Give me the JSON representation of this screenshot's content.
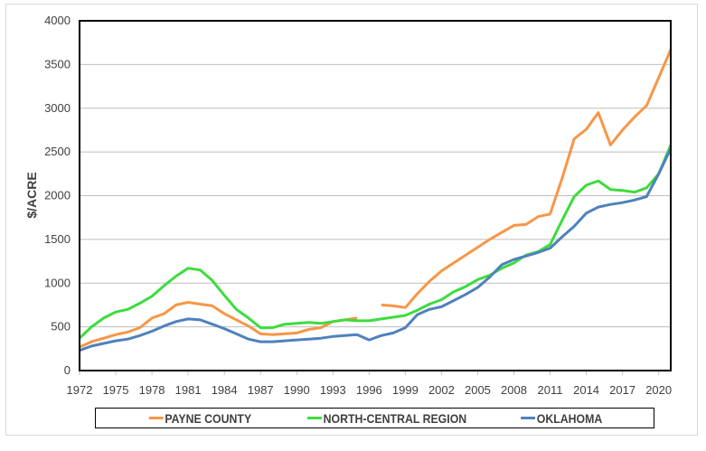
{
  "chart_data": {
    "type": "line",
    "title": "",
    "xlabel": "",
    "ylabel": "$/ACRE",
    "ylim": [
      0,
      4000
    ],
    "yticks": [
      0,
      500,
      1000,
      1500,
      2000,
      2500,
      3000,
      3500,
      4000
    ],
    "xlim": [
      1972,
      2021
    ],
    "xtick_labels": [
      "1972",
      "1975",
      "1978",
      "1981",
      "1984",
      "1987",
      "1990",
      "1993",
      "1996",
      "1999",
      "2002",
      "2005",
      "2008",
      "2011",
      "2014",
      "2017",
      "2020"
    ],
    "grid": true,
    "legend_position": "bottom",
    "x": [
      1972,
      1973,
      1974,
      1975,
      1976,
      1977,
      1978,
      1979,
      1980,
      1981,
      1982,
      1983,
      1984,
      1985,
      1986,
      1987,
      1988,
      1989,
      1990,
      1991,
      1992,
      1993,
      1994,
      1995,
      1996,
      1997,
      1998,
      1999,
      2000,
      2001,
      2002,
      2003,
      2004,
      2005,
      2006,
      2007,
      2008,
      2009,
      2010,
      2011,
      2012,
      2013,
      2014,
      2015,
      2016,
      2017,
      2018,
      2019,
      2020,
      2021
    ],
    "series": [
      {
        "name": "PAYNE COUNTY",
        "color": "#f79646",
        "values": [
          270,
          330,
          370,
          410,
          440,
          490,
          600,
          650,
          750,
          780,
          760,
          740,
          650,
          580,
          510,
          420,
          410,
          420,
          430,
          470,
          490,
          560,
          580,
          600,
          null,
          750,
          740,
          720,
          880,
          1020,
          1140,
          1230,
          1320,
          1410,
          1500,
          1580,
          1660,
          1670,
          1760,
          1790,
          2200,
          2650,
          2760,
          2950,
          2580,
          2750,
          2900,
          3030,
          3350,
          3670
        ]
      },
      {
        "name": "NORTH-CENTRAL REGION",
        "color": "#3ddc3d",
        "values": [
          370,
          500,
          600,
          670,
          700,
          770,
          850,
          970,
          1080,
          1170,
          1150,
          1030,
          860,
          700,
          600,
          490,
          490,
          530,
          540,
          550,
          540,
          560,
          580,
          570,
          570,
          590,
          610,
          630,
          690,
          760,
          810,
          900,
          960,
          1040,
          1090,
          1170,
          1230,
          1320,
          1360,
          1440,
          1720,
          1990,
          2120,
          2170,
          2070,
          2060,
          2040,
          2090,
          2250,
          2580
        ]
      },
      {
        "name": "OKLAHOMA",
        "color": "#4f81bd",
        "values": [
          230,
          280,
          310,
          340,
          360,
          400,
          450,
          510,
          560,
          590,
          580,
          530,
          480,
          420,
          360,
          330,
          330,
          340,
          350,
          360,
          370,
          390,
          400,
          410,
          350,
          400,
          430,
          490,
          640,
          700,
          730,
          800,
          870,
          950,
          1070,
          1210,
          1270,
          1310,
          1350,
          1400,
          1530,
          1650,
          1800,
          1870,
          1900,
          1920,
          1950,
          1990,
          2250,
          2540
        ]
      }
    ]
  }
}
